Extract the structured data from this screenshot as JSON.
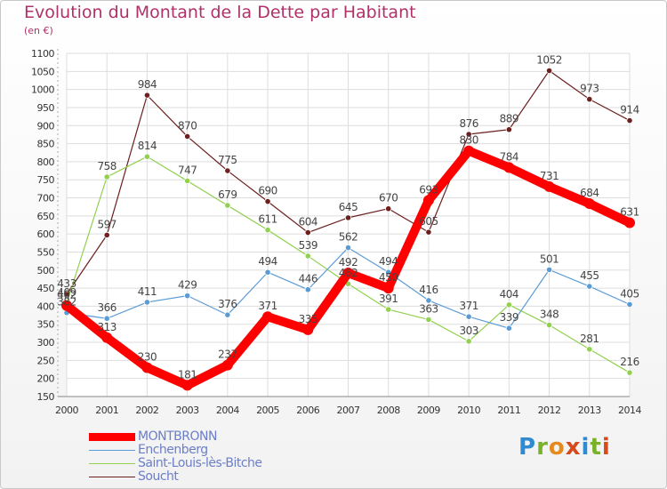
{
  "title": "Evolution du Montant de la Dette par Habitant",
  "subtitle": "(en €)",
  "logo_text": "Proxiti",
  "chart_data": {
    "type": "line",
    "title": "Evolution du Montant de la Dette par Habitant",
    "subtitle": "(en €)",
    "x": [
      "2000",
      "2001",
      "2002",
      "2003",
      "2004",
      "2005",
      "2006",
      "2007",
      "2008",
      "2009",
      "2010",
      "2011",
      "2012",
      "2013",
      "2014"
    ],
    "ylim": [
      150,
      1100
    ],
    "yticks": [
      150,
      200,
      250,
      300,
      350,
      400,
      450,
      500,
      550,
      600,
      650,
      700,
      750,
      800,
      850,
      900,
      950,
      1000,
      1050,
      1100
    ],
    "grid": true,
    "legend_position": "bottom-left",
    "series": [
      {
        "name": "MONTBRONN",
        "color": "#ff0000",
        "values": [
          402,
          313,
          230,
          181,
          237,
          371,
          335,
          492,
          450,
          693,
          830,
          784,
          731,
          684,
          631
        ]
      },
      {
        "name": "Enchenberg",
        "color": "#5b9bd5",
        "values": [
          382,
          366,
          411,
          429,
          376,
          494,
          446,
          562,
          494,
          416,
          371,
          339,
          501,
          455,
          405
        ]
      },
      {
        "name": "Saint-Louis-lès-Bitche",
        "color": "#92d050",
        "values": [
          409,
          758,
          814,
          747,
          679,
          611,
          539,
          462,
          391,
          363,
          303,
          404,
          348,
          281,
          216
        ]
      },
      {
        "name": "Soucht",
        "color": "#6b1f1f",
        "values": [
          433,
          597,
          984,
          870,
          775,
          690,
          604,
          645,
          670,
          605,
          876,
          889,
          1052,
          973,
          914
        ]
      }
    ]
  }
}
